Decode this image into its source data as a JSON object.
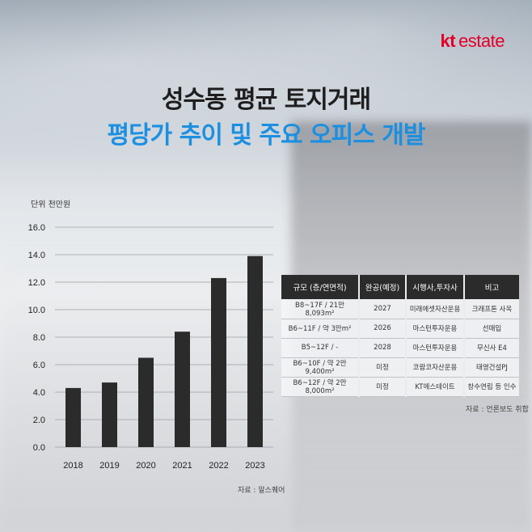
{
  "brand": {
    "kt": "kt",
    "estate": "estate"
  },
  "title_line1": "성수동 평균 토지거래",
  "title_line2": "평당가 추이 및 주요 오피스 개발",
  "chart_unit": "단위 천만원",
  "chart_source": "자료 : 알스퀘어",
  "chart_data": {
    "type": "bar",
    "categories": [
      "2018",
      "2019",
      "2020",
      "2021",
      "2022",
      "2023"
    ],
    "values": [
      4.3,
      4.7,
      6.5,
      8.4,
      12.3,
      13.9
    ],
    "ylim": [
      0,
      16
    ],
    "yticks": [
      "0.0",
      "2.0",
      "4.0",
      "6.0",
      "8.0",
      "10.0",
      "12.0",
      "14.0",
      "16.0"
    ],
    "grid": true,
    "bar_color": "#2b2b2b"
  },
  "table": {
    "headers": [
      "규모 (층/연면적)",
      "완공(예정)",
      "시행사,투자사",
      "비고"
    ],
    "rows": [
      [
        "B8~17F / 21만8,093m²",
        "2027",
        "미래에셋자산운용",
        "크래프톤 사옥"
      ],
      [
        "B6~11F / 약 3만m²",
        "2026",
        "마스턴투자운용",
        "선매입"
      ],
      [
        "B5~12F / -",
        "2028",
        "마스턴투자운용",
        "무신사 E4"
      ],
      [
        "B6~10F / 약 2만9,400m²",
        "미정",
        "코람코자산운용",
        "태영건설PJ"
      ],
      [
        "B6~12F / 약 2만8,000m²",
        "미정",
        "KT에스테이트",
        "창수연립 등 인수"
      ]
    ]
  },
  "table_source": "자료 : 언론보도 취합"
}
